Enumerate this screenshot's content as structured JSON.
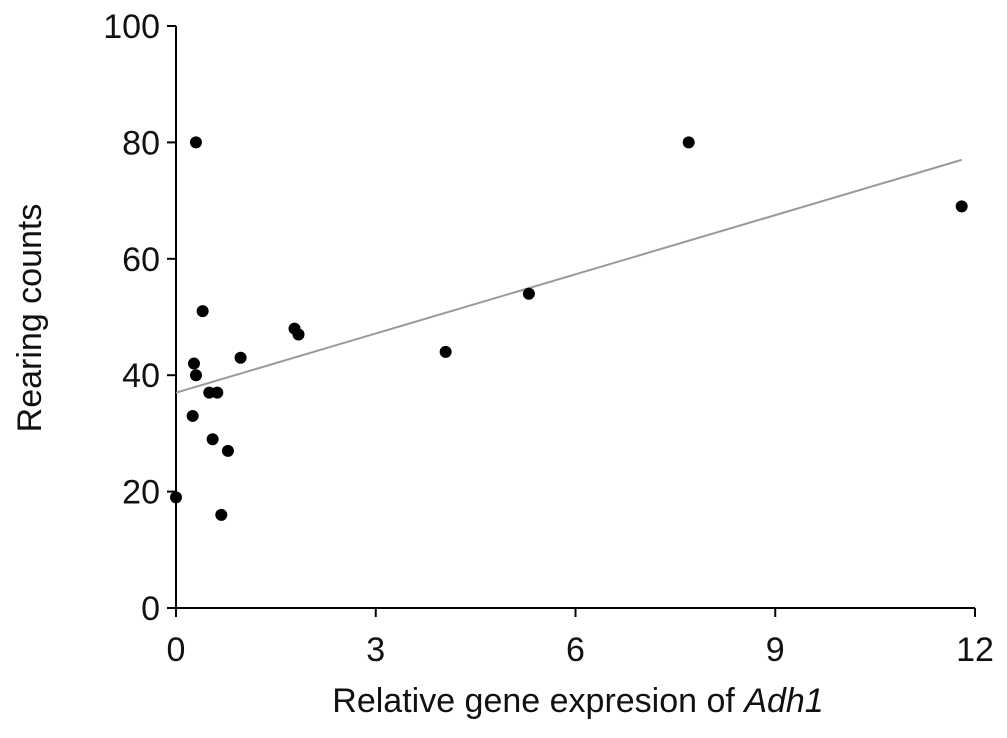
{
  "chart_data": {
    "type": "scatter",
    "title": "",
    "xlabel": "Relative gene expresion of ",
    "xlabel_italic": "Adh1",
    "ylabel": "Rearing counts",
    "xlim": [
      0,
      12
    ],
    "ylim": [
      0,
      100
    ],
    "xticks": [
      0,
      3,
      6,
      9,
      12
    ],
    "yticks": [
      0,
      20,
      40,
      60,
      80,
      100
    ],
    "grid": false,
    "legend": "none",
    "point_color": "#000000",
    "trendline_color": "#9a9a9a",
    "points": [
      {
        "x": 0.0,
        "y": 19
      },
      {
        "x": 0.25,
        "y": 33
      },
      {
        "x": 0.27,
        "y": 42
      },
      {
        "x": 0.3,
        "y": 40
      },
      {
        "x": 0.3,
        "y": 80
      },
      {
        "x": 0.4,
        "y": 51
      },
      {
        "x": 0.5,
        "y": 37
      },
      {
        "x": 0.55,
        "y": 29
      },
      {
        "x": 0.62,
        "y": 37
      },
      {
        "x": 0.68,
        "y": 16
      },
      {
        "x": 0.78,
        "y": 27
      },
      {
        "x": 0.97,
        "y": 43
      },
      {
        "x": 1.78,
        "y": 48
      },
      {
        "x": 1.84,
        "y": 47
      },
      {
        "x": 4.05,
        "y": 44
      },
      {
        "x": 5.3,
        "y": 54
      },
      {
        "x": 7.7,
        "y": 80
      },
      {
        "x": 11.8,
        "y": 69
      }
    ],
    "trendline": {
      "x": [
        0,
        11.8
      ],
      "y": [
        37,
        77
      ]
    }
  }
}
